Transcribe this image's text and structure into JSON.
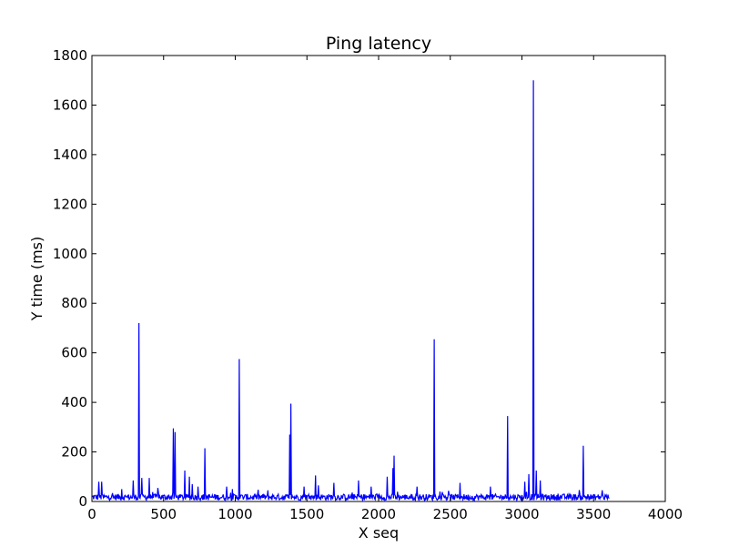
{
  "chart_data": {
    "type": "line",
    "title": "Ping latency",
    "xlabel": "X seq",
    "ylabel": "Y time (ms)",
    "xlim": [
      0,
      4000
    ],
    "ylim": [
      0,
      1800
    ],
    "xticks": [
      0,
      500,
      1000,
      1500,
      2000,
      2500,
      3000,
      3500,
      4000
    ],
    "xtick_labels": [
      "0",
      "500",
      "1000",
      "1500",
      "2000",
      "2500",
      "3000",
      "3500",
      "4000"
    ],
    "yticks": [
      0,
      200,
      400,
      600,
      800,
      1000,
      1200,
      1400,
      1600,
      1800
    ],
    "ytick_labels": [
      "0",
      "200",
      "400",
      "600",
      "800",
      "1000",
      "1200",
      "1400",
      "1600",
      "1800"
    ],
    "grid": false,
    "series": [
      {
        "color": "#0000ff",
        "baseline_range_ms": [
          5,
          30
        ],
        "x_range": [
          0,
          3610
        ],
        "spikes": [
          {
            "x": 50,
            "y": 80
          },
          {
            "x": 70,
            "y": 80
          },
          {
            "x": 210,
            "y": 50
          },
          {
            "x": 290,
            "y": 85
          },
          {
            "x": 330,
            "y": 720
          },
          {
            "x": 350,
            "y": 95
          },
          {
            "x": 400,
            "y": 95
          },
          {
            "x": 460,
            "y": 55
          },
          {
            "x": 570,
            "y": 295
          },
          {
            "x": 580,
            "y": 280
          },
          {
            "x": 650,
            "y": 125
          },
          {
            "x": 680,
            "y": 100
          },
          {
            "x": 700,
            "y": 70
          },
          {
            "x": 740,
            "y": 60
          },
          {
            "x": 790,
            "y": 215
          },
          {
            "x": 940,
            "y": 60
          },
          {
            "x": 980,
            "y": 50
          },
          {
            "x": 1030,
            "y": 575
          },
          {
            "x": 1230,
            "y": 45
          },
          {
            "x": 1380,
            "y": 270
          },
          {
            "x": 1390,
            "y": 395
          },
          {
            "x": 1480,
            "y": 60
          },
          {
            "x": 1560,
            "y": 105
          },
          {
            "x": 1580,
            "y": 65
          },
          {
            "x": 1690,
            "y": 75
          },
          {
            "x": 1860,
            "y": 85
          },
          {
            "x": 1950,
            "y": 60
          },
          {
            "x": 2060,
            "y": 100
          },
          {
            "x": 2100,
            "y": 135
          },
          {
            "x": 2110,
            "y": 185
          },
          {
            "x": 2270,
            "y": 60
          },
          {
            "x": 2390,
            "y": 655
          },
          {
            "x": 2570,
            "y": 75
          },
          {
            "x": 2780,
            "y": 60
          },
          {
            "x": 2900,
            "y": 345
          },
          {
            "x": 3020,
            "y": 80
          },
          {
            "x": 3050,
            "y": 110
          },
          {
            "x": 3080,
            "y": 1700
          },
          {
            "x": 3100,
            "y": 125
          },
          {
            "x": 3130,
            "y": 85
          },
          {
            "x": 3430,
            "y": 225
          },
          {
            "x": 3560,
            "y": 45
          }
        ]
      }
    ]
  }
}
